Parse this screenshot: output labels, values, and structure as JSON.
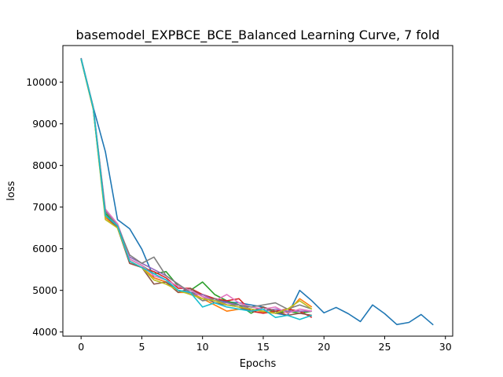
{
  "chart_data": {
    "type": "line",
    "title": "basemodel_EXPBCE_BCE_Balanced Learning Curve, 7 fold",
    "xlabel": "Epochs",
    "ylabel": "loss",
    "xlim": [
      -1.5,
      30.6
    ],
    "ylim": [
      3900,
      10880
    ],
    "xticks": [
      0,
      5,
      10,
      15,
      20,
      25,
      30
    ],
    "yticks": [
      4000,
      5000,
      6000,
      7000,
      8000,
      9000,
      10000
    ],
    "grid": false,
    "legend": "none",
    "colors": [
      "#1f77b4",
      "#ff7f0e",
      "#2ca02c",
      "#d62728",
      "#9467bd",
      "#8c564b",
      "#e377c2",
      "#7f7f7f",
      "#bcbd22",
      "#17becf"
    ],
    "series": [
      {
        "x": [
          0,
          1,
          2,
          3,
          4,
          5,
          6,
          7,
          8,
          9,
          10,
          11,
          12,
          13,
          14,
          15,
          16,
          17,
          18,
          19,
          20,
          21,
          22,
          23,
          24,
          25,
          26,
          27,
          28,
          29
        ],
        "values": [
          10580,
          9400,
          8330,
          6700,
          6480,
          5990,
          5300,
          5200,
          5000,
          4950,
          4900,
          4800,
          4720,
          4700,
          4650,
          4600,
          4450,
          4400,
          5000,
          4750,
          4460,
          4590,
          4440,
          4250,
          4650,
          4440,
          4180,
          4230,
          4420,
          4170
        ]
      },
      {
        "x": [
          0,
          1,
          2,
          3,
          4,
          5,
          6,
          7,
          8,
          9,
          10,
          11,
          12,
          13,
          14,
          15,
          16,
          17,
          18,
          19
        ],
        "values": [
          10550,
          9350,
          6750,
          6500,
          5700,
          5550,
          5300,
          5200,
          4950,
          4950,
          4800,
          4650,
          4500,
          4550,
          4550,
          4480,
          4450,
          4480,
          4800,
          4600
        ]
      },
      {
        "x": [
          0,
          1,
          2,
          3,
          4,
          5,
          6,
          7,
          8,
          9,
          10,
          11,
          12,
          13,
          14,
          15,
          16,
          17,
          18,
          19
        ],
        "values": [
          10560,
          9380,
          6850,
          6550,
          5750,
          5600,
          5400,
          5450,
          5100,
          5000,
          5200,
          4900,
          4750,
          4650,
          4450,
          4600,
          4450,
          4500,
          4450,
          4500
        ]
      },
      {
        "x": [
          0,
          1,
          2,
          3,
          4,
          5,
          6,
          7,
          8,
          9,
          10,
          11,
          12,
          13,
          14,
          15,
          16,
          17,
          18,
          19
        ],
        "values": [
          10560,
          9360,
          6800,
          6520,
          5650,
          5550,
          5450,
          5300,
          5050,
          5050,
          4900,
          4800,
          4750,
          4800,
          4500,
          4450,
          4500,
          4550,
          4500,
          4350
        ]
      },
      {
        "x": [
          0,
          1,
          2,
          3,
          4,
          5,
          6,
          7,
          8,
          9,
          10,
          11,
          12,
          13,
          14,
          15,
          16,
          17,
          18,
          19
        ],
        "values": [
          10570,
          9400,
          6900,
          6600,
          5800,
          5650,
          5500,
          5350,
          5150,
          4900,
          4900,
          4750,
          4700,
          4650,
          4550,
          4500,
          4550,
          4500,
          4500,
          4500
        ]
      },
      {
        "x": [
          0,
          1,
          2,
          3,
          4,
          5,
          6,
          7,
          8,
          9,
          10,
          11,
          12,
          13,
          14,
          15,
          16,
          17,
          18,
          19
        ],
        "values": [
          10550,
          9370,
          6800,
          6500,
          5650,
          5550,
          5150,
          5200,
          4950,
          5050,
          4850,
          4700,
          4650,
          4600,
          4500,
          4600,
          4500,
          4400,
          4450,
          4400
        ]
      },
      {
        "x": [
          0,
          1,
          2,
          3,
          4,
          5,
          6,
          7,
          8,
          9,
          10,
          11,
          12,
          13,
          14,
          15,
          16,
          17,
          18,
          19
        ],
        "values": [
          10560,
          9390,
          6950,
          6600,
          5750,
          5600,
          5350,
          5250,
          5100,
          5000,
          4850,
          4750,
          4900,
          4700,
          4600,
          4550,
          4600,
          4450,
          4550,
          4500
        ]
      },
      {
        "x": [
          0,
          1,
          2,
          3,
          4,
          5,
          6,
          7,
          8,
          9,
          10,
          11,
          12,
          13,
          14,
          15,
          16,
          17,
          18,
          19
        ],
        "values": [
          10570,
          9410,
          6900,
          6550,
          5850,
          5650,
          5800,
          5350,
          5150,
          4950,
          4750,
          4800,
          4650,
          4650,
          4600,
          4650,
          4700,
          4550,
          4650,
          4550
        ]
      },
      {
        "x": [
          0,
          1,
          2,
          3,
          4,
          5,
          6,
          7,
          8,
          9,
          10,
          11,
          12,
          13,
          14,
          15,
          16,
          17,
          18,
          19
        ],
        "values": [
          10550,
          9350,
          6700,
          6500,
          5700,
          5550,
          5250,
          5150,
          5000,
          4900,
          4800,
          4750,
          4650,
          4600,
          4550,
          4500,
          4450,
          4550,
          4750,
          4550
        ]
      },
      {
        "x": [
          0,
          1,
          2,
          3,
          4,
          5,
          6,
          7,
          8,
          9,
          10,
          11,
          12,
          13,
          14,
          15,
          16,
          17,
          18,
          19
        ],
        "values": [
          10560,
          9380,
          6800,
          6550,
          5700,
          5550,
          5400,
          5250,
          5000,
          4950,
          4600,
          4700,
          4600,
          4550,
          4500,
          4550,
          4350,
          4400,
          4300,
          4400
        ]
      }
    ]
  }
}
